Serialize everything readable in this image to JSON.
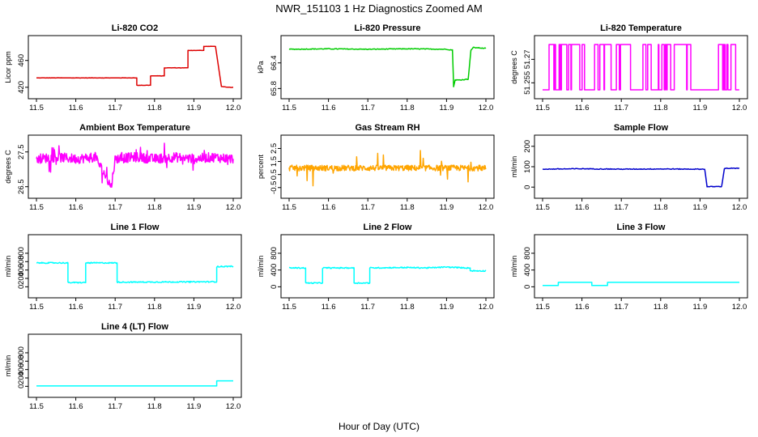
{
  "figure": {
    "title": "NWR_151103  1 Hz Diagnostics Zoomed AM",
    "xlabel": "Hour of Day (UTC)"
  },
  "chart_data": [
    {
      "type": "line",
      "title": "Li-820 CO2",
      "xlabel": "",
      "ylabel": "Licor ppm",
      "color": "#dd0000",
      "xlim": [
        11.5,
        12.0
      ],
      "ylim": [
        415,
        485
      ],
      "xticks": [
        11.5,
        11.6,
        11.7,
        11.8,
        11.9,
        12.0
      ],
      "yticks": [
        420,
        460
      ],
      "x": [
        11.5,
        11.755,
        11.755,
        11.79,
        11.79,
        11.825,
        11.825,
        11.865,
        11.865,
        11.885,
        11.885,
        11.925,
        11.925,
        11.955,
        11.97,
        11.985,
        12.0
      ],
      "y": [
        434,
        434,
        423,
        423,
        437,
        437,
        449,
        449,
        449,
        449,
        475,
        475,
        481,
        481,
        421,
        420,
        420
      ]
    },
    {
      "type": "line",
      "title": "Li-820 Pressure",
      "xlabel": "",
      "ylabel": "kPa",
      "color": "#00cc00",
      "xlim": [
        11.5,
        12.0
      ],
      "ylim": [
        65.75,
        66.85
      ],
      "xticks": [
        11.5,
        11.6,
        11.7,
        11.8,
        11.9,
        12.0
      ],
      "yticks": [
        65.8,
        66.4
      ],
      "x": [
        11.5,
        11.6,
        11.7,
        11.8,
        11.9,
        11.915,
        11.918,
        11.922,
        11.935,
        11.955,
        11.962,
        11.968,
        11.985,
        12.0
      ],
      "y": [
        66.72,
        66.73,
        66.72,
        66.73,
        66.72,
        66.7,
        65.85,
        66.0,
        66.0,
        66.02,
        66.7,
        66.76,
        66.75,
        66.74
      ]
    },
    {
      "type": "line",
      "title": "Li-820 Temperature",
      "xlabel": "",
      "ylabel": "degrees C",
      "color": "#ff00ff",
      "xlim": [
        11.5,
        12.0
      ],
      "ylim": [
        51.25,
        51.28
      ],
      "yscale": "linear",
      "xticks": [
        11.5,
        11.6,
        11.7,
        11.8,
        11.9,
        12.0
      ],
      "yticks": [
        51.255,
        51.27
      ],
      "x": [
        11.5,
        11.54,
        11.6,
        11.65,
        11.7,
        11.75,
        11.8,
        11.85,
        11.9,
        11.95,
        12.0
      ],
      "y": [
        51.25,
        51.28,
        51.25,
        51.28,
        51.25,
        51.28,
        51.25,
        51.28,
        51.25,
        51.28,
        51.25
      ]
    },
    {
      "type": "line",
      "title": "Ambient Box Temperature",
      "xlabel": "",
      "ylabel": "degrees C",
      "color": "#ff00ff",
      "xlim": [
        11.5,
        12.0
      ],
      "ylim": [
        26.4,
        27.75
      ],
      "xticks": [
        11.5,
        11.6,
        11.7,
        11.8,
        11.9,
        12.0
      ],
      "yticks": [
        26.5,
        27.5
      ],
      "x": [
        11.5,
        11.55,
        11.6,
        11.65,
        11.69,
        11.7,
        11.75,
        11.8,
        11.85,
        11.9,
        11.95,
        12.0
      ],
      "y": [
        27.3,
        27.35,
        27.3,
        27.35,
        26.5,
        27.3,
        27.35,
        27.3,
        27.35,
        27.3,
        27.35,
        27.3
      ]
    },
    {
      "type": "line",
      "title": "Gas Stream RH",
      "xlabel": "",
      "ylabel": "percent",
      "color": "#ffa500",
      "xlim": [
        11.5,
        12.0
      ],
      "ylim": [
        -0.7,
        2.9
      ],
      "xticks": [
        11.5,
        11.6,
        11.7,
        11.8,
        11.9,
        12.0
      ],
      "yticks": [
        -0.5,
        0.5,
        1.5,
        2.5
      ],
      "x": [
        11.5,
        11.55,
        11.6,
        11.65,
        11.7,
        11.75,
        11.8,
        11.85,
        11.9,
        11.95,
        12.0
      ],
      "y": [
        1.0,
        1.0,
        1.0,
        1.0,
        1.0,
        1.0,
        1.0,
        1.0,
        1.0,
        1.0,
        1.0
      ]
    },
    {
      "type": "line",
      "title": "Sample Flow",
      "xlabel": "",
      "ylabel": "ml/min",
      "color": "#0000cc",
      "xlim": [
        11.5,
        12.0
      ],
      "ylim": [
        -15,
        215
      ],
      "xticks": [
        11.5,
        11.6,
        11.7,
        11.8,
        11.9,
        12.0
      ],
      "yticks": [
        0,
        100,
        200
      ],
      "x": [
        11.5,
        11.6,
        11.7,
        11.8,
        11.9,
        11.912,
        11.918,
        11.955,
        11.962,
        12.0
      ],
      "y": [
        88,
        90,
        88,
        89,
        88,
        88,
        2,
        3,
        92,
        92
      ]
    },
    {
      "type": "line",
      "title": "Line 1 Flow",
      "xlabel": "",
      "ylabel": "ml/min",
      "color": "#00ffff",
      "xlim": [
        11.5,
        12.0
      ],
      "ylim": [
        -70,
        1050
      ],
      "xticks": [
        11.5,
        11.6,
        11.7,
        11.8,
        11.9,
        12.0
      ],
      "yticks": [
        0,
        200,
        400,
        600,
        800
      ],
      "x": [
        11.5,
        11.58,
        11.58,
        11.625,
        11.625,
        11.705,
        11.705,
        11.958,
        11.958,
        12.0
      ],
      "y": [
        570,
        570,
        100,
        100,
        570,
        570,
        110,
        120,
        480,
        490
      ]
    },
    {
      "type": "line",
      "title": "Line 2 Flow",
      "xlabel": "",
      "ylabel": "ml/min",
      "color": "#00ffff",
      "xlim": [
        11.5,
        12.0
      ],
      "ylim": [
        -70,
        1050
      ],
      "xticks": [
        11.5,
        11.6,
        11.7,
        11.8,
        11.9,
        12.0
      ],
      "yticks": [
        0,
        400,
        800
      ],
      "x": [
        11.5,
        11.542,
        11.542,
        11.585,
        11.585,
        11.665,
        11.665,
        11.705,
        11.705,
        11.8,
        11.85,
        11.9,
        11.95,
        11.96,
        11.96,
        12.0
      ],
      "y": [
        450,
        450,
        90,
        90,
        450,
        450,
        90,
        90,
        450,
        460,
        450,
        470,
        450,
        450,
        380,
        380
      ]
    },
    {
      "type": "line",
      "title": "Line 3 Flow",
      "xlabel": "",
      "ylabel": "ml/min",
      "color": "#00ffff",
      "xlim": [
        11.5,
        12.0
      ],
      "ylim": [
        -70,
        1050
      ],
      "xticks": [
        11.5,
        11.6,
        11.7,
        11.8,
        11.9,
        12.0
      ],
      "yticks": [
        0,
        400,
        800
      ],
      "x": [
        11.5,
        11.54,
        11.54,
        11.625,
        11.625,
        11.665,
        11.665,
        12.0
      ],
      "y": [
        30,
        30,
        105,
        105,
        30,
        30,
        105,
        105
      ]
    },
    {
      "type": "line",
      "title": "Line 4 (LT) Flow",
      "xlabel": "",
      "ylabel": "ml/min",
      "color": "#00ffff",
      "xlim": [
        11.5,
        12.0
      ],
      "ylim": [
        -70,
        1050
      ],
      "xticks": [
        11.5,
        11.6,
        11.7,
        11.8,
        11.9,
        12.0
      ],
      "yticks": [
        0,
        200,
        400,
        600,
        800
      ],
      "x": [
        11.5,
        11.958,
        11.958,
        12.0
      ],
      "y": [
        10,
        10,
        130,
        130
      ]
    }
  ]
}
